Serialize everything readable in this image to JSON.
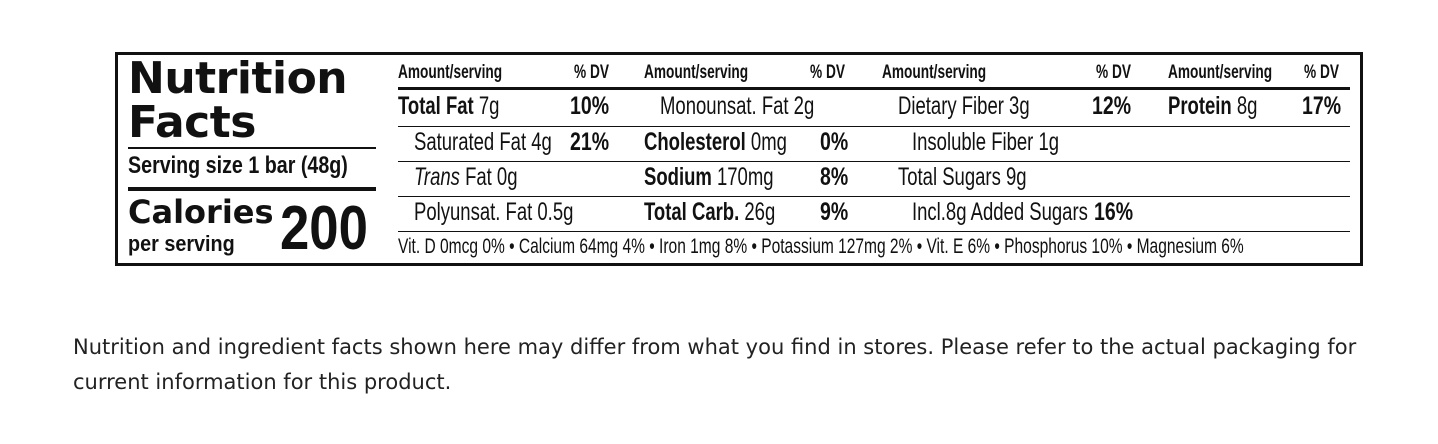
{
  "label": {
    "title_line1": "Nutrition",
    "title_line2": "Facts",
    "serving_size": "Serving size 1 bar (48g)",
    "calories_label": "Calories",
    "calories_per": "per serving",
    "calories_value": "200",
    "headers": {
      "amount": "Amount/serving",
      "dv": "% DV"
    },
    "col1": [
      {
        "name": "Total Fat",
        "amount": " 7g",
        "dv": "10%",
        "bold": true
      },
      {
        "name": "Saturated Fat 4g",
        "amount": "",
        "dv": "21%"
      },
      {
        "name": "Trans",
        "amount": " Fat 0g",
        "dv": ""
      },
      {
        "name": "Polyunsat. Fat 0.5g",
        "amount": "",
        "dv": ""
      }
    ],
    "col2": [
      {
        "name": "Monounsat. Fat 2g",
        "amount": "",
        "dv": ""
      },
      {
        "name": "Cholesterol",
        "amount": " 0mg",
        "dv": "0%",
        "bold": true
      },
      {
        "name": "Sodium",
        "amount": " 170mg",
        "dv": "8%",
        "bold": true
      },
      {
        "name": "Total Carb.",
        "amount": " 26g",
        "dv": "9%",
        "bold": true
      }
    ],
    "col3": [
      {
        "name": "Dietary Fiber 3g",
        "amount": "",
        "dv": "12%"
      },
      {
        "name": "Insoluble Fiber 1g",
        "amount": "",
        "dv": ""
      },
      {
        "name": "Total Sugars 9g",
        "amount": "",
        "dv": ""
      },
      {
        "name": "Incl.8g Added Sugars",
        "amount": "",
        "dv": "16%"
      }
    ],
    "col4": [
      {
        "name": "Protein",
        "amount": " 8g",
        "dv": "17%",
        "bold": true
      }
    ],
    "vitamins": "Vit. D 0mcg 0% • Calcium 64mg 4% • Iron 1mg 8% • Potassium 127mg 2% • Vit. E 6% • Phosphorus 10% • Magnesium 6%"
  },
  "disclaimer": "Nutrition and ingredient facts shown here may differ from what you find in stores. Please refer to the actual packaging for current information for this product."
}
